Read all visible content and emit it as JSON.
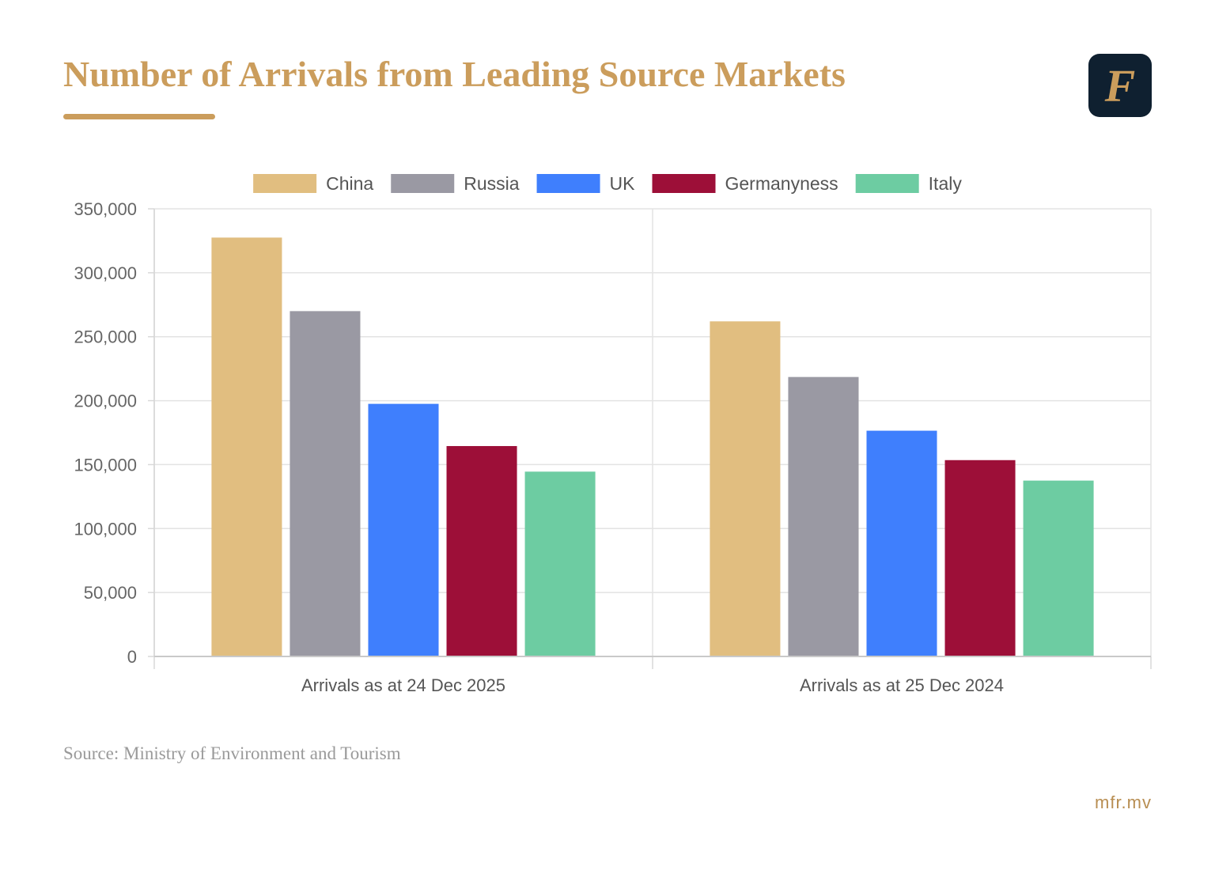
{
  "header": {
    "title": "Number of Arrivals from Leading Source Markets",
    "logo_letter": "F"
  },
  "footer": {
    "source": "Source: Ministry of Environment and Tourism",
    "site": "mfr.mv"
  },
  "colors": {
    "accent": "#cb9d5c",
    "logo_bg": "#0f2030"
  },
  "chart_data": {
    "type": "bar",
    "categories": [
      "Arrivals as at 24 Dec 2025",
      "Arrivals as at 25 Dec 2024"
    ],
    "series": [
      {
        "name": "China",
        "color": "#e1be80",
        "values": [
          327500,
          262000
        ]
      },
      {
        "name": "Russia",
        "color": "#9a99a3",
        "values": [
          270000,
          218500
        ]
      },
      {
        "name": "UK",
        "color": "#3f7ffd",
        "values": [
          197500,
          176500
        ]
      },
      {
        "name": "Germanyness",
        "color": "#9d0f38",
        "values": [
          164500,
          153500
        ]
      },
      {
        "name": "Italy",
        "color": "#6dcca2",
        "values": [
          144500,
          137500
        ]
      }
    ],
    "ylim": [
      0,
      350000
    ],
    "yticks": [
      0,
      50000,
      100000,
      150000,
      200000,
      250000,
      300000,
      350000
    ],
    "ytick_labels": [
      "0",
      "50,000",
      "100,000",
      "150,000",
      "200,000",
      "250,000",
      "300,000",
      "350,000"
    ],
    "grid": true,
    "legend": "top"
  }
}
